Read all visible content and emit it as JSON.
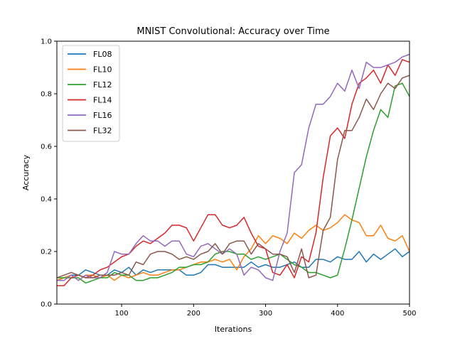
{
  "chart_data": {
    "type": "line",
    "title": "MNIST Convolutional: Accuracy over Time",
    "xlabel": "Iterations",
    "ylabel": "Accuracy",
    "xlim": [
      10,
      500
    ],
    "ylim": [
      0.0,
      1.0
    ],
    "xticks": [
      100,
      200,
      300,
      400,
      500
    ],
    "yticks": [
      0.0,
      0.2,
      0.4,
      0.6,
      0.8,
      1.0
    ],
    "xtick_labels": [
      "100",
      "200",
      "300",
      "400",
      "500"
    ],
    "ytick_labels": [
      "0.0",
      "0.2",
      "0.4",
      "0.6",
      "0.8",
      "1.0"
    ],
    "grid": false,
    "legend_position": "top-left",
    "x": [
      10,
      20,
      30,
      40,
      50,
      60,
      70,
      80,
      90,
      100,
      110,
      120,
      130,
      140,
      150,
      160,
      170,
      180,
      190,
      200,
      210,
      220,
      230,
      240,
      250,
      260,
      270,
      280,
      290,
      300,
      310,
      320,
      330,
      340,
      350,
      360,
      370,
      380,
      390,
      400,
      410,
      420,
      430,
      440,
      450,
      460,
      470,
      480,
      490,
      500
    ],
    "series": [
      {
        "name": "FL08",
        "color": "#1f77b4",
        "values": [
          0.09,
          0.1,
          0.11,
          0.11,
          0.13,
          0.12,
          0.11,
          0.11,
          0.13,
          0.12,
          0.14,
          0.11,
          0.13,
          0.12,
          0.13,
          0.13,
          0.13,
          0.13,
          0.11,
          0.11,
          0.12,
          0.15,
          0.15,
          0.14,
          0.14,
          0.14,
          0.14,
          0.16,
          0.14,
          0.15,
          0.14,
          0.14,
          0.15,
          0.16,
          0.14,
          0.14,
          0.17,
          0.17,
          0.16,
          0.18,
          0.17,
          0.17,
          0.2,
          0.16,
          0.19,
          0.17,
          0.19,
          0.21,
          0.18,
          0.2
        ]
      },
      {
        "name": "FL10",
        "color": "#ff7f0e",
        "values": [
          0.09,
          0.1,
          0.11,
          0.09,
          0.11,
          0.11,
          0.1,
          0.11,
          0.09,
          0.11,
          0.1,
          0.11,
          0.12,
          0.11,
          0.11,
          0.12,
          0.13,
          0.13,
          0.14,
          0.15,
          0.16,
          0.16,
          0.17,
          0.16,
          0.17,
          0.13,
          0.18,
          0.21,
          0.26,
          0.23,
          0.26,
          0.25,
          0.23,
          0.27,
          0.25,
          0.28,
          0.3,
          0.28,
          0.29,
          0.31,
          0.34,
          0.32,
          0.31,
          0.26,
          0.26,
          0.3,
          0.25,
          0.24,
          0.26,
          0.2
        ]
      },
      {
        "name": "FL12",
        "color": "#2ca02c",
        "values": [
          0.1,
          0.1,
          0.1,
          0.1,
          0.08,
          0.09,
          0.1,
          0.1,
          0.12,
          0.11,
          0.11,
          0.09,
          0.09,
          0.1,
          0.1,
          0.11,
          0.12,
          0.14,
          0.14,
          0.15,
          0.15,
          0.16,
          0.19,
          0.2,
          0.2,
          0.19,
          0.19,
          0.17,
          0.18,
          0.17,
          0.18,
          0.19,
          0.17,
          0.15,
          0.14,
          0.12,
          0.12,
          0.11,
          0.1,
          0.11,
          0.21,
          0.32,
          0.44,
          0.56,
          0.66,
          0.74,
          0.71,
          0.83,
          0.84,
          0.79
        ]
      },
      {
        "name": "FL14",
        "color": "#d62728",
        "values": [
          0.07,
          0.07,
          0.1,
          0.11,
          0.1,
          0.11,
          0.13,
          0.14,
          0.16,
          0.18,
          0.19,
          0.22,
          0.24,
          0.23,
          0.25,
          0.27,
          0.3,
          0.3,
          0.29,
          0.24,
          0.29,
          0.34,
          0.34,
          0.3,
          0.29,
          0.3,
          0.33,
          0.27,
          0.22,
          0.21,
          0.12,
          0.11,
          0.15,
          0.1,
          0.18,
          0.16,
          0.27,
          0.48,
          0.64,
          0.67,
          0.63,
          0.76,
          0.84,
          0.86,
          0.89,
          0.84,
          0.91,
          0.87,
          0.93,
          0.92
        ]
      },
      {
        "name": "FL16",
        "color": "#9467bd",
        "values": [
          0.09,
          0.09,
          0.11,
          0.09,
          0.11,
          0.1,
          0.1,
          0.12,
          0.2,
          0.19,
          0.19,
          0.23,
          0.26,
          0.24,
          0.24,
          0.22,
          0.24,
          0.24,
          0.19,
          0.18,
          0.22,
          0.23,
          0.21,
          0.19,
          0.21,
          0.19,
          0.11,
          0.14,
          0.13,
          0.1,
          0.09,
          0.2,
          0.27,
          0.5,
          0.53,
          0.67,
          0.76,
          0.76,
          0.79,
          0.84,
          0.81,
          0.89,
          0.82,
          0.92,
          0.9,
          0.9,
          0.91,
          0.92,
          0.94,
          0.95
        ]
      },
      {
        "name": "FL32",
        "color": "#8c564b",
        "values": [
          0.1,
          0.11,
          0.12,
          0.11,
          0.1,
          0.1,
          0.11,
          0.11,
          0.11,
          0.12,
          0.11,
          0.16,
          0.15,
          0.19,
          0.2,
          0.2,
          0.19,
          0.17,
          0.18,
          0.17,
          0.19,
          0.2,
          0.23,
          0.19,
          0.23,
          0.24,
          0.24,
          0.19,
          0.23,
          0.21,
          0.19,
          0.19,
          0.18,
          0.12,
          0.21,
          0.1,
          0.11,
          0.28,
          0.33,
          0.55,
          0.66,
          0.66,
          0.71,
          0.78,
          0.74,
          0.8,
          0.84,
          0.82,
          0.86,
          0.87
        ]
      }
    ]
  }
}
